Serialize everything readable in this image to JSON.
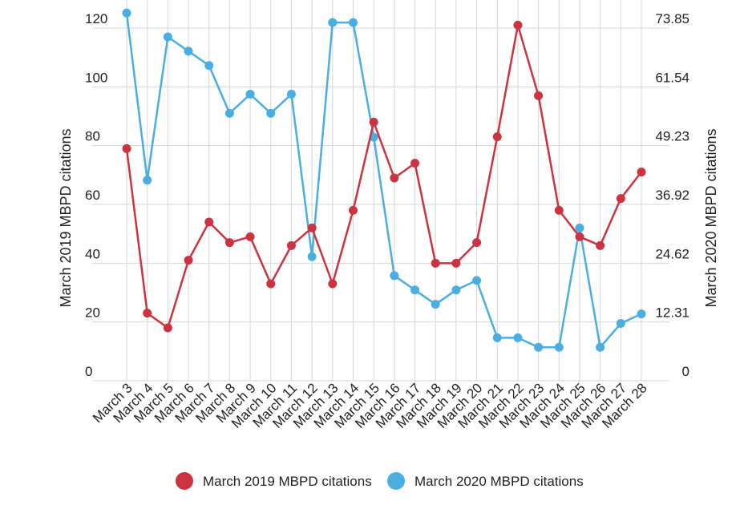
{
  "chart_data": {
    "type": "line",
    "title": "",
    "categories": [
      "March 3",
      "March 4",
      "March 5",
      "March 6",
      "March 7",
      "March 8",
      "March 9",
      "March 10",
      "March 11",
      "March 12",
      "March 13",
      "March 14",
      "March 15",
      "March 16",
      "March 17",
      "March 18",
      "March 19",
      "March 20",
      "March 21",
      "March 22",
      "March 23",
      "March 24",
      "March 25",
      "March 26",
      "March 27",
      "March 28"
    ],
    "y_left": {
      "label": "March 2019 MBPD citations",
      "range": [
        0,
        120
      ],
      "ticks": [
        "0",
        "20",
        "40",
        "60",
        "80",
        "100",
        "120"
      ],
      "tick_values": [
        0,
        20,
        40,
        60,
        80,
        100,
        120
      ]
    },
    "y_right": {
      "label": "March 2020 MBPD citations",
      "range": [
        0,
        73.85
      ],
      "ticks": [
        "0",
        "12.31",
        "24.62",
        "36.92",
        "49.23",
        "61.54",
        "73.85"
      ],
      "tick_values": [
        0,
        12.31,
        24.62,
        36.92,
        49.23,
        61.54,
        73.85
      ]
    },
    "grid": "vertical and horizontal",
    "legend_position": "bottom",
    "series": [
      {
        "name": "March 2019 MBPD citations",
        "axis": "left",
        "color": "#cc3340",
        "values": [
          79,
          23,
          18,
          41,
          54,
          47,
          49,
          33,
          46,
          52,
          33,
          58,
          88,
          69,
          74,
          40,
          40,
          47,
          83,
          121,
          97,
          58,
          49,
          46,
          62,
          71
        ]
      },
      {
        "name": "March 2020 MBPD citations",
        "axis": "right",
        "color": "#4aaee0",
        "values": [
          77,
          42,
          72,
          69,
          66,
          56,
          60,
          56,
          60,
          26,
          75,
          75,
          51,
          22,
          19,
          16,
          19,
          21,
          9,
          9,
          7,
          7,
          32,
          7,
          12,
          14
        ]
      }
    ]
  }
}
